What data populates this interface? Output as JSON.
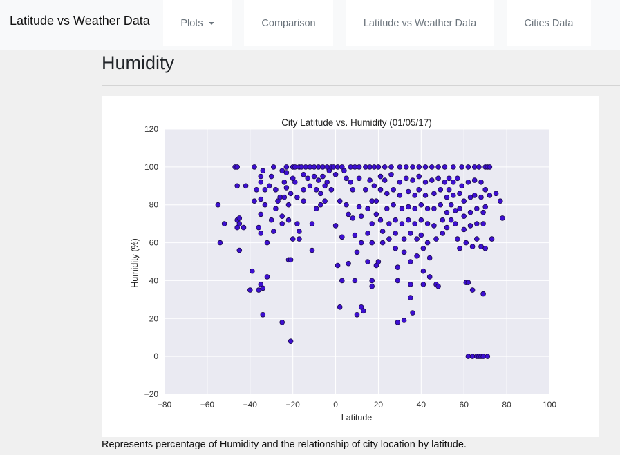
{
  "navbar": {
    "brand": "Latitude vs Weather Data",
    "items": [
      {
        "label": "Plots",
        "dropdown": true
      },
      {
        "label": "Comparison"
      },
      {
        "label": "Latitude vs Weather Data"
      },
      {
        "label": "Cities Data"
      }
    ]
  },
  "page": {
    "title": "Humidity",
    "caption": "Represents percentage of Humidity and the relationship of city location by latitude."
  },
  "colors": {
    "plot_background": "#eaeaf2",
    "point_fill": "#3d0fd1",
    "point_edge": "#1a0a4a",
    "grid": "#ffffff"
  },
  "chart_data": {
    "type": "scatter",
    "title": "City Latitude vs. Humidity (01/05/17)",
    "xlabel": "Latitude",
    "ylabel": "Humidity (%)",
    "xlim": [
      -80,
      100
    ],
    "ylim": [
      -20,
      120
    ],
    "xticks": [
      "−80",
      "−60",
      "−40",
      "−20",
      "0",
      "20",
      "40",
      "60",
      "80",
      "100"
    ],
    "yticks": [
      "−20",
      "0",
      "20",
      "40",
      "60",
      "80",
      "100",
      "120"
    ],
    "grid": true,
    "legend": "none",
    "points": [
      [
        -55,
        80
      ],
      [
        -54,
        60
      ],
      [
        -52,
        70
      ],
      [
        -47,
        100
      ],
      [
        -46,
        100
      ],
      [
        -46,
        90
      ],
      [
        -46,
        72
      ],
      [
        -45,
        73
      ],
      [
        -45,
        70
      ],
      [
        -46,
        68
      ],
      [
        -45,
        56
      ],
      [
        -43,
        68
      ],
      [
        -42,
        90
      ],
      [
        -40,
        35
      ],
      [
        -39,
        45
      ],
      [
        -38,
        100
      ],
      [
        -37,
        88
      ],
      [
        -38,
        82
      ],
      [
        -36,
        35
      ],
      [
        -36,
        68
      ],
      [
        -35,
        92
      ],
      [
        -35,
        83
      ],
      [
        -35,
        75
      ],
      [
        -35,
        65
      ],
      [
        -35,
        95
      ],
      [
        -34,
        98
      ],
      [
        -33,
        88
      ],
      [
        -33,
        80
      ],
      [
        -35,
        38
      ],
      [
        -34,
        36
      ],
      [
        -34,
        22
      ],
      [
        -32,
        42
      ],
      [
        -32,
        60
      ],
      [
        -31,
        90
      ],
      [
        -30,
        95
      ],
      [
        -30,
        72
      ],
      [
        -29,
        100
      ],
      [
        -29,
        66
      ],
      [
        -28,
        88
      ],
      [
        -28,
        78
      ],
      [
        -27,
        82
      ],
      [
        -26,
        84
      ],
      [
        -25,
        98
      ],
      [
        -25,
        74
      ],
      [
        -25,
        70
      ],
      [
        -25,
        18
      ],
      [
        -24,
        92
      ],
      [
        -24,
        84
      ],
      [
        -23,
        100
      ],
      [
        -23,
        97
      ],
      [
        -23,
        89
      ],
      [
        -22,
        80
      ],
      [
        -22,
        72
      ],
      [
        -22,
        51
      ],
      [
        -21,
        51
      ],
      [
        -21,
        8
      ],
      [
        -21,
        86
      ],
      [
        -20,
        100
      ],
      [
        -20,
        94
      ],
      [
        -20,
        62
      ],
      [
        -19,
        100
      ],
      [
        -19,
        92
      ],
      [
        -18,
        84
      ],
      [
        -18,
        70
      ],
      [
        -17,
        100
      ],
      [
        -17,
        66
      ],
      [
        -17,
        62
      ],
      [
        -16,
        100
      ],
      [
        -15,
        96
      ],
      [
        -15,
        88
      ],
      [
        -15,
        82
      ],
      [
        -14,
        100
      ],
      [
        -13,
        94
      ],
      [
        -12,
        100
      ],
      [
        -12,
        90
      ],
      [
        -11,
        70
      ],
      [
        -11,
        56
      ],
      [
        -10,
        100
      ],
      [
        -10,
        95
      ],
      [
        -9,
        88
      ],
      [
        -9,
        78
      ],
      [
        -8,
        100
      ],
      [
        -8,
        93
      ],
      [
        -7,
        86
      ],
      [
        -7,
        80
      ],
      [
        -6,
        100
      ],
      [
        -6,
        95
      ],
      [
        -5,
        90
      ],
      [
        -5,
        82
      ],
      [
        -4,
        100
      ],
      [
        -4,
        92
      ],
      [
        -3,
        98
      ],
      [
        -2,
        100
      ],
      [
        -2,
        88
      ],
      [
        -1,
        100
      ],
      [
        0,
        96
      ],
      [
        0,
        69
      ],
      [
        1,
        100
      ],
      [
        1,
        48
      ],
      [
        2,
        82
      ],
      [
        2,
        26
      ],
      [
        3,
        100
      ],
      [
        3,
        40
      ],
      [
        3,
        63
      ],
      [
        4,
        98
      ],
      [
        5,
        94
      ],
      [
        5,
        80
      ],
      [
        6,
        75
      ],
      [
        6,
        49
      ],
      [
        7,
        100
      ],
      [
        7,
        92
      ],
      [
        8,
        88
      ],
      [
        8,
        73
      ],
      [
        9,
        100
      ],
      [
        9,
        64
      ],
      [
        9,
        40
      ],
      [
        10,
        22
      ],
      [
        10,
        55
      ],
      [
        11,
        100
      ],
      [
        11,
        94
      ],
      [
        11,
        79
      ],
      [
        12,
        74
      ],
      [
        12,
        60
      ],
      [
        12,
        26
      ],
      [
        13,
        24
      ],
      [
        14,
        100
      ],
      [
        14,
        88
      ],
      [
        15,
        78
      ],
      [
        15,
        65
      ],
      [
        15,
        50
      ],
      [
        16,
        100
      ],
      [
        16,
        93
      ],
      [
        17,
        82
      ],
      [
        17,
        70
      ],
      [
        17,
        60
      ],
      [
        17,
        37
      ],
      [
        17,
        40
      ],
      [
        18,
        100
      ],
      [
        18,
        90
      ],
      [
        19,
        82
      ],
      [
        19,
        75
      ],
      [
        19,
        48
      ],
      [
        20,
        50
      ],
      [
        20,
        100
      ],
      [
        21,
        95
      ],
      [
        21,
        88
      ],
      [
        21,
        72
      ],
      [
        22,
        66
      ],
      [
        22,
        60
      ],
      [
        23,
        100
      ],
      [
        23,
        93
      ],
      [
        24,
        86
      ],
      [
        24,
        78
      ],
      [
        25,
        70
      ],
      [
        25,
        62
      ],
      [
        26,
        100
      ],
      [
        26,
        96
      ],
      [
        27,
        88
      ],
      [
        27,
        80
      ],
      [
        28,
        72
      ],
      [
        28,
        65
      ],
      [
        28,
        57
      ],
      [
        29,
        47
      ],
      [
        29,
        40
      ],
      [
        29,
        18
      ],
      [
        30,
        100
      ],
      [
        30,
        92
      ],
      [
        30,
        85
      ],
      [
        31,
        78
      ],
      [
        31,
        70
      ],
      [
        32,
        62
      ],
      [
        32,
        55
      ],
      [
        32,
        19
      ],
      [
        33,
        100
      ],
      [
        33,
        94
      ],
      [
        34,
        87
      ],
      [
        34,
        79
      ],
      [
        34,
        72
      ],
      [
        35,
        65
      ],
      [
        35,
        50
      ],
      [
        35,
        38
      ],
      [
        35,
        31
      ],
      [
        36,
        100
      ],
      [
        36,
        93
      ],
      [
        36,
        23
      ],
      [
        37,
        85
      ],
      [
        37,
        78
      ],
      [
        37,
        70
      ],
      [
        38,
        62
      ],
      [
        38,
        53
      ],
      [
        39,
        100
      ],
      [
        39,
        95
      ],
      [
        39,
        88
      ],
      [
        40,
        80
      ],
      [
        40,
        72
      ],
      [
        40,
        64
      ],
      [
        41,
        57
      ],
      [
        41,
        45
      ],
      [
        41,
        38
      ],
      [
        42,
        100
      ],
      [
        42,
        92
      ],
      [
        42,
        85
      ],
      [
        43,
        78
      ],
      [
        43,
        70
      ],
      [
        43,
        60
      ],
      [
        44,
        52
      ],
      [
        44,
        42
      ],
      [
        45,
        100
      ],
      [
        45,
        93
      ],
      [
        46,
        86
      ],
      [
        46,
        78
      ],
      [
        46,
        69
      ],
      [
        47,
        38
      ],
      [
        47,
        62
      ],
      [
        48,
        100
      ],
      [
        48,
        94
      ],
      [
        48,
        37
      ],
      [
        49,
        88
      ],
      [
        49,
        80
      ],
      [
        50,
        72
      ],
      [
        50,
        65
      ],
      [
        51,
        100
      ],
      [
        51,
        92
      ],
      [
        52,
        84
      ],
      [
        52,
        76
      ],
      [
        52,
        68
      ],
      [
        53,
        94
      ],
      [
        53,
        88
      ],
      [
        54,
        80
      ],
      [
        54,
        72
      ],
      [
        55,
        100
      ],
      [
        55,
        92
      ],
      [
        55,
        85
      ],
      [
        56,
        77
      ],
      [
        56,
        70
      ],
      [
        57,
        62
      ],
      [
        57,
        94
      ],
      [
        58,
        86
      ],
      [
        58,
        78
      ],
      [
        58,
        57
      ],
      [
        59,
        100
      ],
      [
        59,
        90
      ],
      [
        60,
        82
      ],
      [
        60,
        74
      ],
      [
        60,
        67
      ],
      [
        61,
        60
      ],
      [
        61,
        39
      ],
      [
        62,
        100
      ],
      [
        62,
        92
      ],
      [
        62,
        39
      ],
      [
        62,
        0
      ],
      [
        63,
        84
      ],
      [
        63,
        76
      ],
      [
        63,
        69
      ],
      [
        64,
        58
      ],
      [
        64,
        35
      ],
      [
        64,
        0
      ],
      [
        65,
        100
      ],
      [
        65,
        93
      ],
      [
        65,
        85
      ],
      [
        66,
        78
      ],
      [
        66,
        70
      ],
      [
        66,
        62
      ],
      [
        66,
        0
      ],
      [
        67,
        100
      ],
      [
        67,
        0
      ],
      [
        68,
        92
      ],
      [
        68,
        84
      ],
      [
        68,
        58
      ],
      [
        68,
        0
      ],
      [
        69,
        76
      ],
      [
        69,
        70
      ],
      [
        69,
        33
      ],
      [
        69,
        0
      ],
      [
        70,
        100
      ],
      [
        70,
        88
      ],
      [
        70,
        79
      ],
      [
        70,
        57
      ],
      [
        71,
        100
      ],
      [
        71,
        0
      ],
      [
        72,
        100
      ],
      [
        72,
        85
      ],
      [
        73,
        62
      ],
      [
        75,
        86
      ],
      [
        77,
        82
      ],
      [
        78,
        73
      ]
    ]
  }
}
